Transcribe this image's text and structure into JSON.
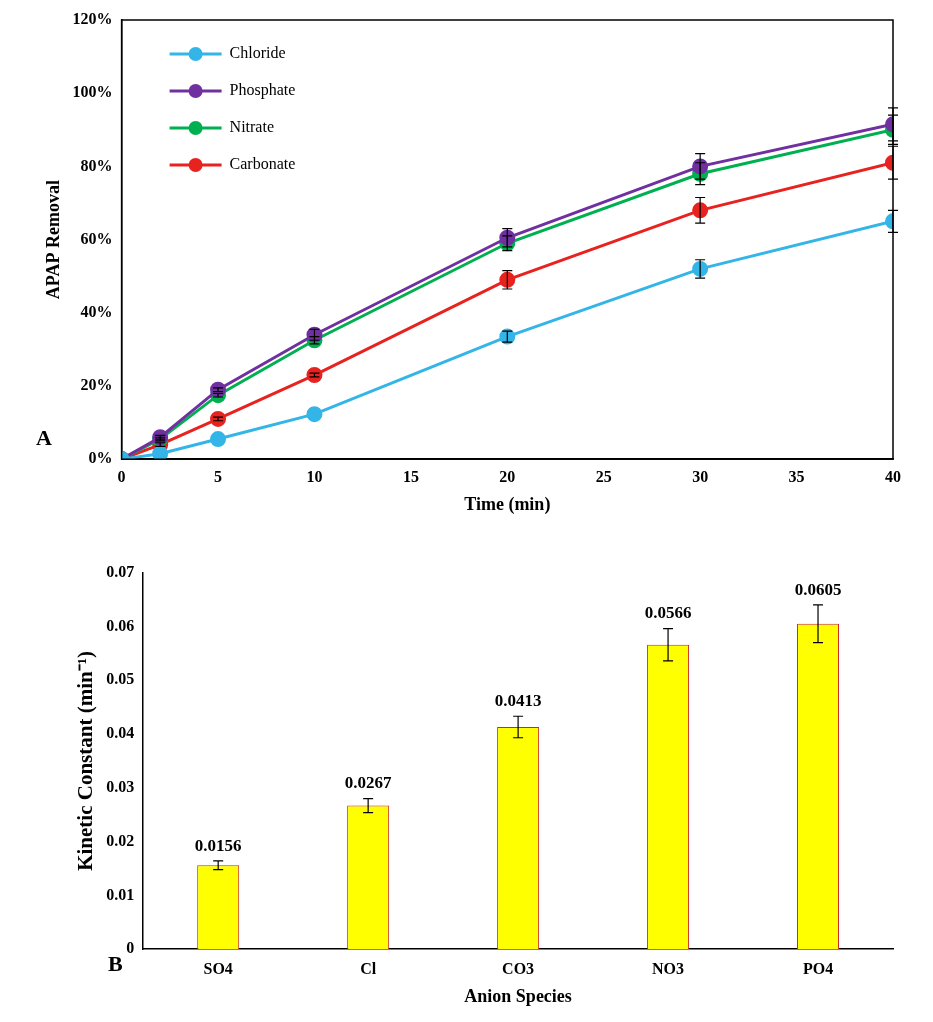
{
  "chart_data": [
    {
      "type": "line",
      "x_label": "Time (min)",
      "y_label": "APAP Removal",
      "annotations": [
        "A"
      ],
      "x": [
        0,
        2,
        5,
        10,
        20,
        30,
        40
      ],
      "xlim": [
        0,
        40
      ],
      "xticks": [
        0,
        5,
        10,
        15,
        20,
        25,
        30,
        35,
        40
      ],
      "ylim": [
        0,
        120
      ],
      "yticks": [
        {
          "value": 0,
          "label": "0%"
        },
        {
          "value": 20,
          "label": "20%"
        },
        {
          "value": 40,
          "label": "40%"
        },
        {
          "value": 60,
          "label": "60%"
        },
        {
          "value": 80,
          "label": "80%"
        },
        {
          "value": 100,
          "label": "100%"
        },
        {
          "value": 120,
          "label": "120%"
        }
      ],
      "grid": false,
      "legend": "top-left",
      "marker": "circle",
      "series": [
        {
          "name": "Chloride",
          "color": "#33b5e8",
          "values": [
            0,
            1.5,
            5.5,
            12.3,
            33.5,
            52,
            65
          ],
          "errors": [
            0,
            0,
            0,
            0,
            1.5,
            2.5,
            3
          ]
        },
        {
          "name": "Phosphate",
          "color": "#7030a0",
          "values": [
            0,
            6,
            19,
            34,
            60.5,
            80,
            91.5
          ],
          "errors": [
            0,
            0.5,
            0.5,
            1.5,
            2.5,
            3.5,
            4.5
          ]
        },
        {
          "name": "Nitrate",
          "color": "#00b050",
          "values": [
            0,
            5.5,
            17.5,
            32.5,
            59,
            78,
            90
          ],
          "errors": [
            0,
            0.5,
            0.5,
            1,
            2,
            3,
            4
          ]
        },
        {
          "name": "Carbonate",
          "color": "#e8231f",
          "values": [
            0,
            4,
            11,
            23,
            49,
            68,
            81
          ],
          "errors": [
            0,
            0.5,
            0.5,
            0.5,
            2.5,
            3.5,
            4.5
          ]
        }
      ]
    },
    {
      "type": "bar",
      "x_label": "Anion Species",
      "y_label": "Kinetic Constant (min⁻¹)",
      "annotations": [
        "B"
      ],
      "categories": [
        "SO4",
        "Cl",
        "CO3",
        "NO3",
        "PO4"
      ],
      "values": [
        0.0156,
        0.0267,
        0.0413,
        0.0566,
        0.0605
      ],
      "errors": [
        0.0008,
        0.0013,
        0.002,
        0.003,
        0.0035
      ],
      "color": "#ffff00",
      "ylim": [
        0,
        0.07
      ],
      "yticks": [
        0,
        0.01,
        0.02,
        0.03,
        0.04,
        0.05,
        0.06,
        0.07
      ],
      "grid": false,
      "data_labels": true
    }
  ]
}
